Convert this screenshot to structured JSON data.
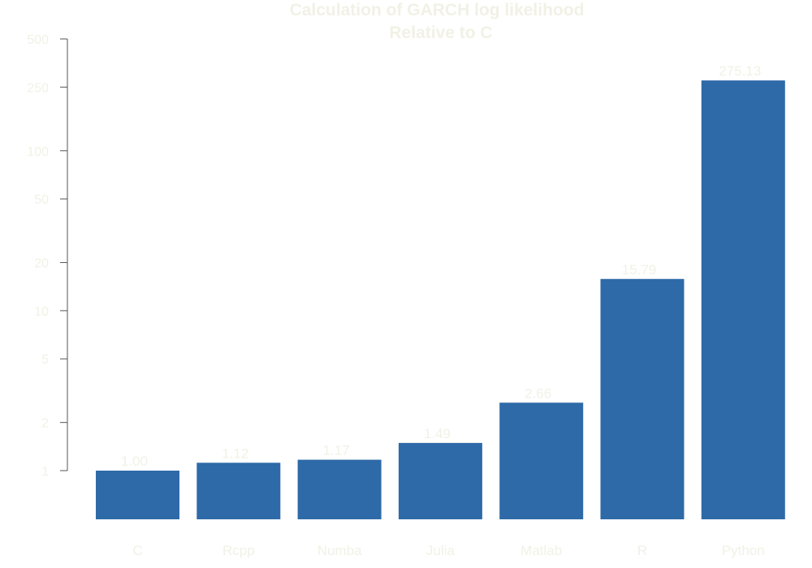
{
  "colors": {
    "bar": "#2e6aa8",
    "text": "#f1f1e6",
    "axis": "#555555",
    "background": "#ffffff"
  },
  "chart_data": {
    "type": "bar",
    "title": "Calculation of GARCH log likelihood",
    "subtitle": "Relative to C",
    "xlabel": "",
    "ylabel": "",
    "yscale": "log",
    "ylim": [
      0.5,
      500
    ],
    "yticks": [
      1,
      2,
      5,
      10,
      20,
      50,
      100,
      250,
      500
    ],
    "grid": false,
    "categories": [
      "C",
      "Rcpp",
      "Numba",
      "Julia",
      "Matlab",
      "R",
      "Python"
    ],
    "values": [
      1.0,
      1.12,
      1.17,
      1.49,
      2.66,
      15.79,
      275.13
    ],
    "data_labels": [
      "1.00",
      "1.12",
      "1.17",
      "1.49",
      "2.66",
      "15.79",
      "275.13"
    ]
  }
}
